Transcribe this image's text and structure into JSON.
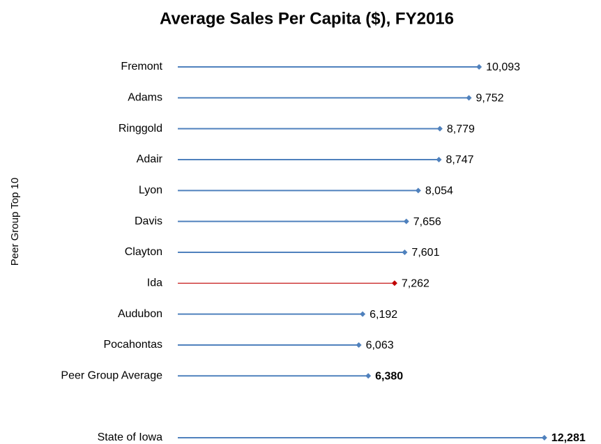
{
  "chart_data": {
    "type": "lollipop",
    "title": "Average Sales Per Capita ($), FY2016",
    "y_label": "Peer Group Top 10",
    "categories": [
      "Fremont",
      "Adams",
      "Ringgold",
      "Adair",
      "Lyon",
      "Davis",
      "Clayton",
      "Ida",
      "Audubon",
      "Pocahontas",
      "Peer Group Average",
      null,
      "State of Iowa"
    ],
    "values": [
      10093,
      9752,
      8779,
      8747,
      8054,
      7656,
      7601,
      7262,
      6192,
      6063,
      6380,
      null,
      12281
    ],
    "value_labels": [
      "10,093",
      "9,752",
      "8,779",
      "8,747",
      "8,054",
      "7,656",
      "7,601",
      "7,262",
      "6,192",
      "6,063",
      "6,380",
      null,
      "12,281"
    ],
    "colors": [
      "#4f81bd",
      "#4f81bd",
      "#4f81bd",
      "#4f81bd",
      "#4f81bd",
      "#4f81bd",
      "#4f81bd",
      "#c00000",
      "#4f81bd",
      "#4f81bd",
      "#4f81bd",
      null,
      "#4f81bd"
    ],
    "value_label_weights": [
      "normal",
      "normal",
      "normal",
      "normal",
      "normal",
      "normal",
      "normal",
      "normal",
      "normal",
      "normal",
      "bold",
      null,
      "bold"
    ],
    "xlim": [
      0,
      13500
    ]
  }
}
